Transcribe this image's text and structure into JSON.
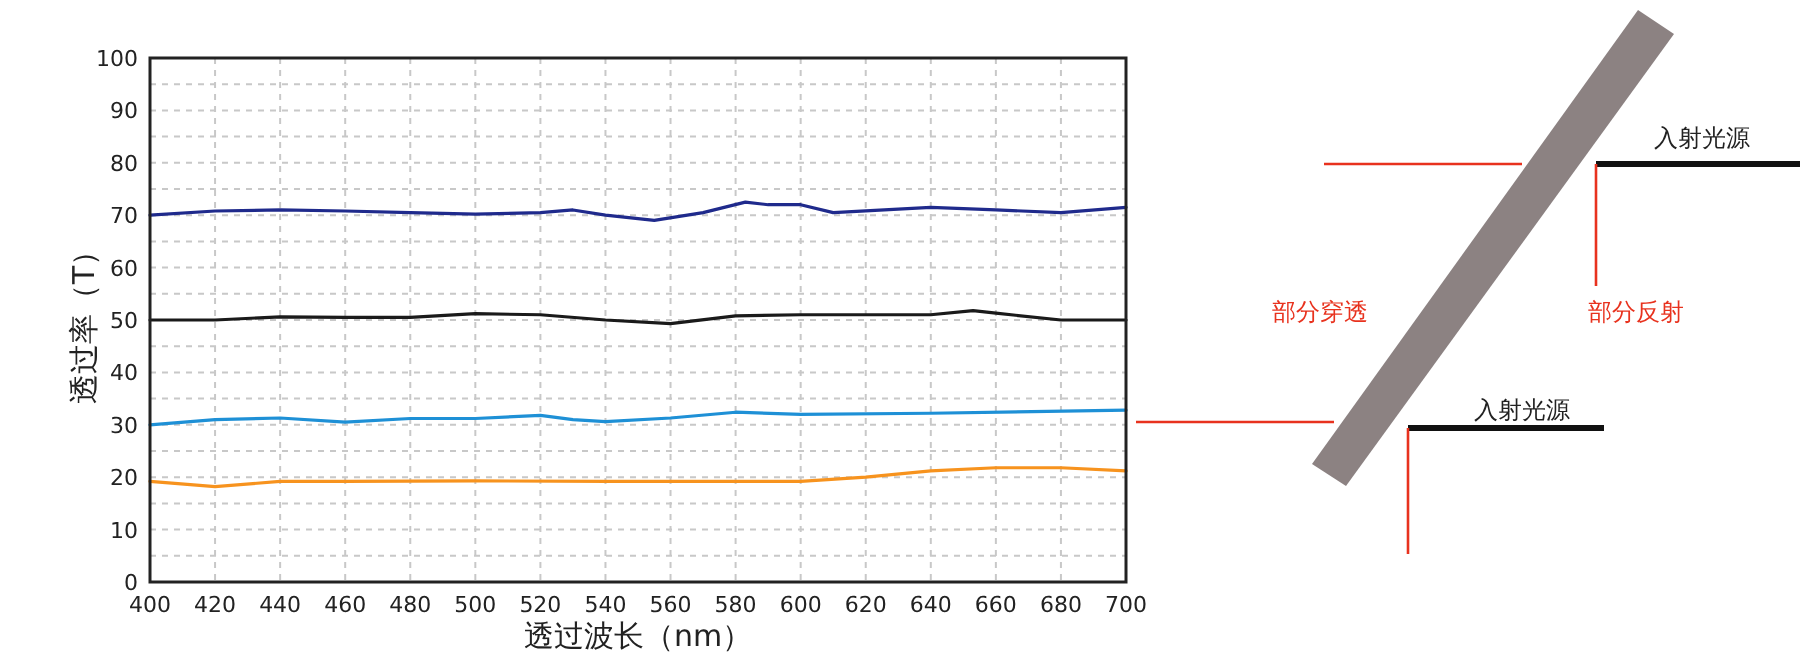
{
  "chart_data": {
    "type": "line",
    "xlabel": "透过波长（nm）",
    "ylabel": "透过率（T）",
    "xlim": [
      400,
      700
    ],
    "xticks": [
      400,
      420,
      440,
      460,
      480,
      500,
      520,
      540,
      560,
      580,
      600,
      620,
      640,
      660,
      680,
      700
    ],
    "ylim": [
      0,
      100
    ],
    "yticks": [
      0,
      {
        "value": 5,
        "label": null
      },
      10,
      {
        "value": 15,
        "label": null
      },
      20,
      {
        "value": 25,
        "label": null
      },
      30,
      {
        "value": 35,
        "label": null
      },
      40,
      {
        "value": 45,
        "label": null
      },
      50,
      {
        "value": 55,
        "label": null
      },
      60,
      {
        "value": 65,
        "label": null
      },
      70,
      {
        "value": 75,
        "label": null
      },
      80,
      {
        "value": 85,
        "label": null
      },
      90,
      {
        "value": 95,
        "label": null
      },
      100
    ],
    "grid": true,
    "marker": "none",
    "line_style": "solid",
    "series": [
      {
        "color": "#1f2a8c",
        "x": [
          400,
          420,
          440,
          460,
          480,
          500,
          520,
          530,
          540,
          555,
          570,
          583,
          590,
          600,
          610,
          640,
          660,
          680,
          700
        ],
        "values": [
          70,
          70.8,
          71,
          70.8,
          70.5,
          70.2,
          70.5,
          71,
          70,
          69,
          70.5,
          72.5,
          72,
          72,
          70.5,
          71.5,
          71,
          70.5,
          71.5
        ]
      },
      {
        "color": "#1a1a1a",
        "x": [
          400,
          420,
          440,
          460,
          480,
          500,
          520,
          540,
          560,
          580,
          600,
          620,
          640,
          653,
          660,
          680,
          700
        ],
        "values": [
          50,
          50,
          50.6,
          50.5,
          50.5,
          51.2,
          51,
          50,
          49.3,
          50.8,
          51,
          51,
          51,
          51.8,
          51.3,
          50,
          50
        ]
      },
      {
        "color": "#1e90d6",
        "x": [
          400,
          420,
          440,
          460,
          480,
          500,
          520,
          530,
          540,
          560,
          580,
          600,
          640,
          700
        ],
        "values": [
          30,
          31,
          31.3,
          30.5,
          31.2,
          31.2,
          31.8,
          31,
          30.6,
          31.3,
          32.4,
          32,
          32.2,
          32.8
        ]
      },
      {
        "color": "#f7931e",
        "x": [
          400,
          420,
          440,
          460,
          500,
          540,
          600,
          620,
          640,
          660,
          680,
          700
        ],
        "values": [
          19.2,
          18.2,
          19.2,
          19.2,
          19.3,
          19.2,
          19.2,
          20,
          21.2,
          21.8,
          21.8,
          21.2
        ]
      }
    ],
    "annotations": [
      "入射光源",
      "部分穿透",
      "部分反射",
      "入射光源"
    ]
  }
}
